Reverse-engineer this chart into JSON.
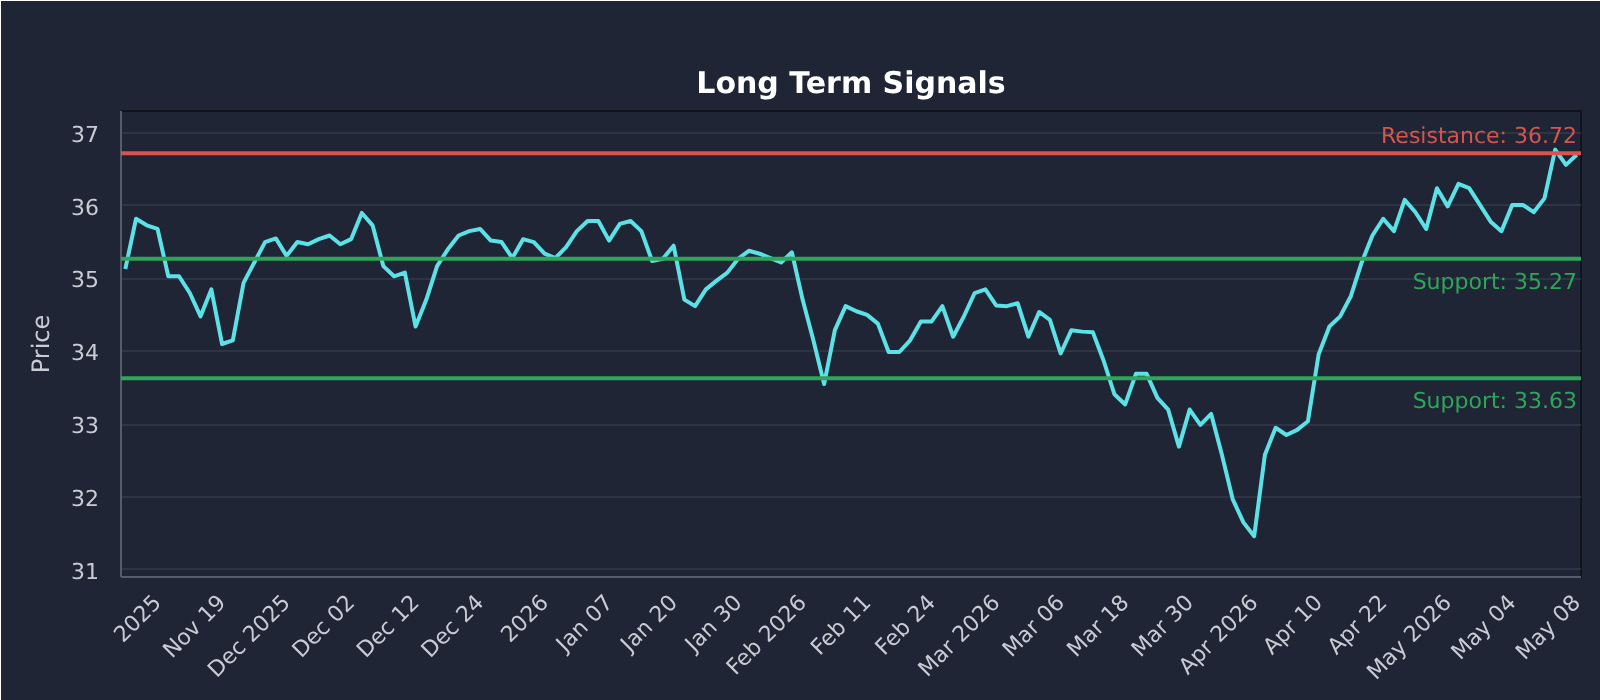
{
  "chart_data": {
    "type": "line",
    "title": "Long Term Signals",
    "ylabel": "Price",
    "categories": [
      null,
      null,
      null,
      "2025",
      null,
      null,
      null,
      null,
      null,
      "Nov 19",
      null,
      null,
      null,
      null,
      null,
      "Dec 2025",
      null,
      null,
      null,
      null,
      null,
      "Dec 02",
      null,
      null,
      null,
      null,
      null,
      "Dec 12",
      null,
      null,
      null,
      null,
      null,
      "Dec 24",
      null,
      null,
      null,
      null,
      null,
      "2026",
      null,
      null,
      null,
      null,
      null,
      "Jan 07",
      null,
      null,
      null,
      null,
      null,
      "Jan 20",
      null,
      null,
      null,
      null,
      null,
      "Jan 30",
      null,
      null,
      null,
      null,
      null,
      "Feb 2026",
      null,
      null,
      null,
      null,
      null,
      "Feb 11",
      null,
      null,
      null,
      null,
      null,
      "Feb 24",
      null,
      null,
      null,
      null,
      null,
      "Mar 2026",
      null,
      null,
      null,
      null,
      null,
      "Mar 06",
      null,
      null,
      null,
      null,
      null,
      "Mar 18",
      null,
      null,
      null,
      null,
      null,
      "Mar 30",
      null,
      null,
      null,
      null,
      null,
      "Apr 2026",
      null,
      null,
      null,
      null,
      null,
      "Apr 10",
      null,
      null,
      null,
      null,
      null,
      "Apr 22",
      null,
      null,
      null,
      null,
      null,
      "May 2026",
      null,
      null,
      null,
      null,
      null,
      "May 04",
      null,
      null,
      null,
      null,
      null,
      "May 08"
    ],
    "series": [
      {
        "color": "#5ce1e6",
        "values": [
          35.13,
          35.82,
          35.73,
          35.68,
          35.03,
          35.03,
          34.8,
          34.48,
          34.85,
          34.1,
          34.15,
          34.94,
          35.22,
          35.5,
          35.55,
          35.31,
          35.5,
          35.47,
          35.54,
          35.59,
          35.47,
          35.54,
          35.9,
          35.73,
          35.17,
          35.03,
          35.08,
          34.34,
          34.71,
          35.17,
          35.4,
          35.59,
          35.65,
          35.68,
          35.52,
          35.5,
          35.28,
          35.54,
          35.5,
          35.34,
          35.28,
          35.43,
          35.65,
          35.79,
          35.79,
          35.52,
          35.75,
          35.79,
          35.65,
          35.24,
          35.27,
          35.45,
          34.71,
          34.62,
          34.85,
          34.97,
          35.08,
          35.27,
          35.38,
          35.34,
          35.28,
          35.22,
          35.36,
          34.71,
          34.15,
          33.55,
          34.29,
          34.62,
          34.55,
          34.5,
          34.38,
          33.99,
          33.99,
          34.15,
          34.41,
          34.41,
          34.62,
          34.2,
          34.48,
          34.8,
          34.85,
          34.63,
          34.62,
          34.66,
          34.2,
          34.54,
          34.43,
          33.97,
          34.29,
          34.27,
          34.26,
          33.87,
          33.41,
          33.27,
          33.69,
          33.69,
          33.36,
          33.2,
          32.69,
          33.2,
          32.99,
          33.14,
          32.58,
          31.97,
          31.65,
          31.46,
          32.58,
          32.95,
          32.85,
          32.92,
          33.04,
          33.96,
          34.34,
          34.48,
          34.76,
          35.22,
          35.59,
          35.82,
          35.65,
          36.08,
          35.91,
          35.68,
          36.24,
          35.99,
          36.3,
          36.24,
          36.01,
          35.78,
          35.65,
          36.01,
          36.01,
          35.91,
          36.1,
          36.77,
          36.56,
          36.7
        ]
      }
    ],
    "ylim": [
      30.9,
      37.3
    ],
    "yticks": [
      31,
      32,
      33,
      34,
      35,
      36,
      37
    ],
    "grid": "y",
    "marker": "none",
    "line_style": "solid",
    "ref_lines": [
      {
        "axis": "y",
        "value": 36.72,
        "label": "Resistance: 36.72",
        "color": "#d9534f"
      },
      {
        "axis": "y",
        "value": 35.27,
        "label": "Support: 35.27",
        "color": "#2ea55a"
      },
      {
        "axis": "y",
        "value": 33.63,
        "label": "Support: 33.63",
        "color": "#2ea55a"
      }
    ]
  }
}
